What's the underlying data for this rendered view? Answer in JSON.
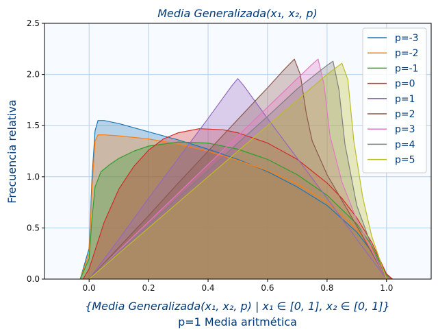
{
  "chart_data": {
    "type": "area",
    "title": "Media Generalizada(x₁, x₂, p)",
    "xlabel": "{Media Generalizada(x₁, x₂, p) | x₁ ∈ [0, 1], x₂ ∈ [0, 1]}",
    "xlabel_line2": "p=1 Media aritmética",
    "ylabel": "Frecuencia relativa",
    "xlim": [
      -0.15,
      1.15
    ],
    "ylim": [
      0,
      2.5
    ],
    "xticks": [
      "0.0",
      "0.2",
      "0.4",
      "0.6",
      "0.8",
      "1.0"
    ],
    "yticks": [
      "0.0",
      "0.5",
      "1.0",
      "1.5",
      "2.0",
      "2.5"
    ],
    "grid": true,
    "legend_position": "top-right",
    "series": [
      {
        "name": "p=-3",
        "color": "#1f77b4",
        "x": [
          -0.03,
          0.0,
          0.01,
          0.02,
          0.03,
          0.05,
          0.1,
          0.2,
          0.3,
          0.4,
          0.5,
          0.6,
          0.7,
          0.8,
          0.9,
          0.95,
          1.0,
          1.02
        ],
        "y": [
          0.0,
          0.3,
          1.0,
          1.45,
          1.55,
          1.55,
          1.52,
          1.44,
          1.36,
          1.27,
          1.17,
          1.05,
          0.9,
          0.72,
          0.46,
          0.27,
          0.04,
          0.0
        ]
      },
      {
        "name": "p=-2",
        "color": "#ff7f0e",
        "x": [
          -0.03,
          0.0,
          0.01,
          0.02,
          0.03,
          0.05,
          0.1,
          0.2,
          0.3,
          0.4,
          0.5,
          0.6,
          0.7,
          0.8,
          0.9,
          0.95,
          1.0,
          1.02
        ],
        "y": [
          0.0,
          0.25,
          0.9,
          1.35,
          1.41,
          1.41,
          1.4,
          1.37,
          1.32,
          1.25,
          1.16,
          1.06,
          0.93,
          0.75,
          0.49,
          0.3,
          0.04,
          0.0
        ]
      },
      {
        "name": "p=-1",
        "color": "#2ca02c",
        "x": [
          -0.03,
          0.0,
          0.01,
          0.02,
          0.04,
          0.07,
          0.1,
          0.15,
          0.2,
          0.3,
          0.4,
          0.5,
          0.6,
          0.7,
          0.8,
          0.9,
          0.95,
          1.0,
          1.02
        ],
        "y": [
          0.0,
          0.2,
          0.6,
          0.9,
          1.05,
          1.12,
          1.18,
          1.25,
          1.3,
          1.34,
          1.33,
          1.27,
          1.17,
          1.02,
          0.82,
          0.54,
          0.33,
          0.04,
          0.0
        ]
      },
      {
        "name": "p=0",
        "color": "#d62728",
        "x": [
          -0.02,
          0.0,
          0.05,
          0.1,
          0.15,
          0.2,
          0.25,
          0.3,
          0.37,
          0.45,
          0.5,
          0.6,
          0.7,
          0.8,
          0.85,
          0.9,
          0.95,
          1.0,
          1.02
        ],
        "y": [
          0.0,
          0.1,
          0.55,
          0.88,
          1.1,
          1.26,
          1.37,
          1.43,
          1.47,
          1.46,
          1.43,
          1.33,
          1.17,
          0.94,
          0.79,
          0.6,
          0.36,
          0.05,
          0.0
        ]
      },
      {
        "name": "p=1",
        "color": "#9467bd",
        "x": [
          0.0,
          0.1,
          0.2,
          0.3,
          0.4,
          0.48,
          0.5,
          0.52,
          0.6,
          0.7,
          0.8,
          0.9,
          1.0
        ],
        "y": [
          0.0,
          0.39,
          0.79,
          1.18,
          1.57,
          1.89,
          1.96,
          1.89,
          1.57,
          1.18,
          0.79,
          0.39,
          0.0
        ]
      },
      {
        "name": "p=2",
        "color": "#8c564b",
        "x": [
          0.0,
          0.1,
          0.2,
          0.3,
          0.4,
          0.5,
          0.6,
          0.65,
          0.69,
          0.71,
          0.73,
          0.75,
          0.8,
          0.85,
          0.9,
          0.95,
          1.0
        ],
        "y": [
          0.0,
          0.31,
          0.62,
          0.94,
          1.25,
          1.56,
          1.87,
          2.03,
          2.15,
          2.0,
          1.62,
          1.35,
          1.02,
          0.77,
          0.52,
          0.26,
          0.0
        ]
      },
      {
        "name": "p=3",
        "color": "#e377c2",
        "x": [
          0.0,
          0.1,
          0.2,
          0.3,
          0.4,
          0.5,
          0.6,
          0.7,
          0.75,
          0.77,
          0.79,
          0.81,
          0.85,
          0.9,
          0.95,
          1.0
        ],
        "y": [
          0.0,
          0.28,
          0.56,
          0.84,
          1.12,
          1.4,
          1.68,
          1.96,
          2.1,
          2.15,
          1.9,
          1.4,
          0.95,
          0.58,
          0.28,
          0.0
        ]
      },
      {
        "name": "p=4",
        "color": "#7f7f7f",
        "x": [
          0.0,
          0.1,
          0.2,
          0.3,
          0.4,
          0.5,
          0.6,
          0.7,
          0.8,
          0.82,
          0.84,
          0.86,
          0.9,
          0.95,
          1.0
        ],
        "y": [
          0.0,
          0.27,
          0.53,
          0.8,
          1.06,
          1.33,
          1.59,
          1.86,
          2.09,
          2.13,
          1.85,
          1.32,
          0.72,
          0.32,
          0.0
        ]
      },
      {
        "name": "p=5",
        "color": "#bcbd22",
        "x": [
          0.0,
          0.1,
          0.2,
          0.3,
          0.4,
          0.5,
          0.6,
          0.7,
          0.8,
          0.85,
          0.87,
          0.89,
          0.92,
          0.95,
          1.0
        ],
        "y": [
          0.0,
          0.25,
          0.5,
          0.75,
          1.0,
          1.25,
          1.5,
          1.75,
          2.0,
          2.11,
          1.95,
          1.35,
          0.8,
          0.42,
          0.0
        ]
      }
    ]
  }
}
